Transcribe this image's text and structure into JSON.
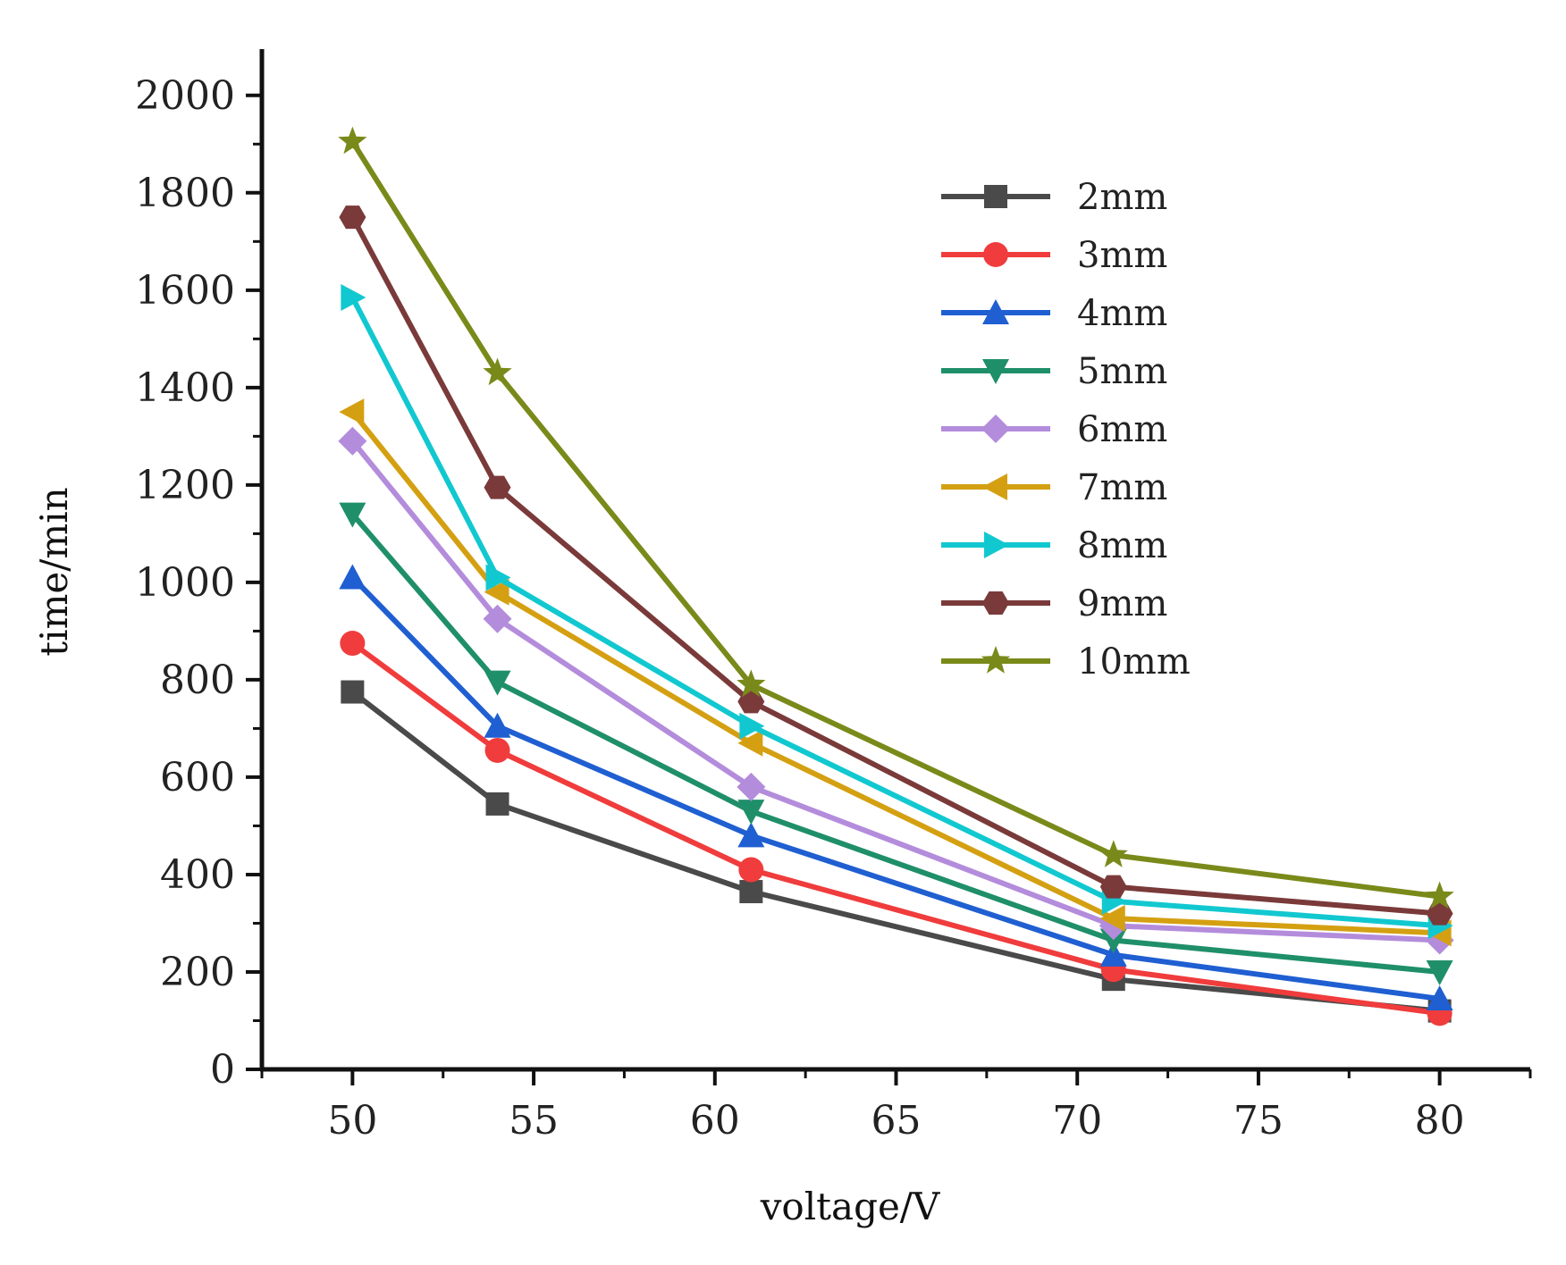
{
  "chart_data": {
    "type": "line",
    "title": "",
    "xlabel": "voltage/V",
    "ylabel": "time/min",
    "xlim": [
      47.5,
      82.5
    ],
    "ylim": [
      0,
      2100
    ],
    "x_ticks": [
      50,
      55,
      60,
      65,
      70,
      75,
      80
    ],
    "y_ticks": [
      0,
      200,
      400,
      600,
      800,
      1000,
      1200,
      1400,
      1600,
      1800,
      2000
    ],
    "x": [
      50,
      54,
      61,
      71,
      80
    ],
    "grid": false,
    "legend_position": "top-right",
    "series": [
      {
        "name": "2mm",
        "color": "#4a4a4a",
        "marker": "square",
        "values": [
          775,
          545,
          365,
          185,
          120
        ]
      },
      {
        "name": "3mm",
        "color": "#f03c3c",
        "marker": "circle",
        "values": [
          875,
          655,
          410,
          205,
          115
        ]
      },
      {
        "name": "4mm",
        "color": "#1f5fd1",
        "marker": "triangle-up",
        "values": [
          1010,
          705,
          480,
          235,
          145
        ]
      },
      {
        "name": "5mm",
        "color": "#1f8f6a",
        "marker": "triangle-down",
        "values": [
          1140,
          795,
          530,
          265,
          200
        ]
      },
      {
        "name": "6mm",
        "color": "#b48cdc",
        "marker": "diamond",
        "values": [
          1290,
          925,
          580,
          295,
          265
        ]
      },
      {
        "name": "7mm",
        "color": "#d4a012",
        "marker": "triangle-left",
        "values": [
          1350,
          980,
          670,
          310,
          280
        ]
      },
      {
        "name": "8mm",
        "color": "#12c8d0",
        "marker": "triangle-right",
        "values": [
          1585,
          1010,
          705,
          345,
          295
        ]
      },
      {
        "name": "9mm",
        "color": "#7a3a3a",
        "marker": "hexagon",
        "values": [
          1750,
          1195,
          755,
          375,
          320
        ]
      },
      {
        "name": "10mm",
        "color": "#7a8a1a",
        "marker": "star",
        "values": [
          1905,
          1430,
          790,
          440,
          355
        ]
      }
    ]
  }
}
